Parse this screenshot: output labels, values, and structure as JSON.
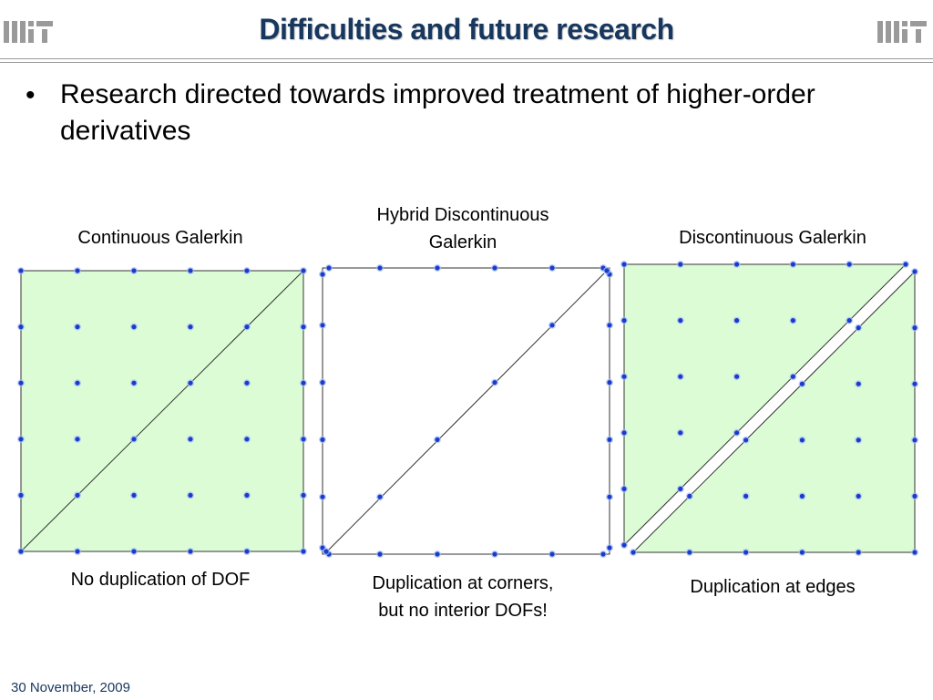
{
  "slide": {
    "title": "Difficulties and future research",
    "bullet": "Research directed towards improved treatment of higher-order derivatives",
    "date": "30 November, 2009"
  },
  "panels": [
    {
      "label": "Continuous Galerkin",
      "caption": "No duplication of DOF"
    },
    {
      "label_line1": "Hybrid Discontinuous",
      "label_line2": "Galerkin",
      "caption_line1": "Duplication at corners,",
      "caption_line2": "but no interior DOFs!"
    },
    {
      "label": "Discontinuous Galerkin",
      "caption": "Duplication at edges"
    }
  ],
  "colors": {
    "title": "#17375e",
    "element_fill": "#dcfcd6",
    "node": "#1a3ccc",
    "node_halo": "#a6bdf4",
    "edge": "#333333"
  },
  "icons": {
    "logo": "mit-logo-icon"
  }
}
